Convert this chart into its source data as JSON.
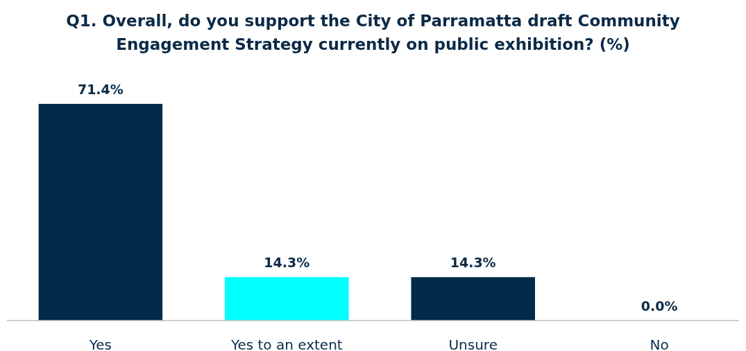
{
  "chart_data": {
    "type": "bar",
    "title": "Q1. Overall, do you support the City of Parramatta draft Community Engagement Strategy currently on public exhibition? (%)",
    "categories": [
      "Yes",
      "Yes to an extent",
      "Unsure",
      "No"
    ],
    "values": [
      71.4,
      14.3,
      14.3,
      0.0
    ],
    "colors": [
      "#022b4b",
      "#00ffff",
      "#022b4b",
      "#022b4b"
    ],
    "value_labels": [
      "71.4%",
      "14.3%",
      "14.3%",
      "0.0%"
    ]
  }
}
